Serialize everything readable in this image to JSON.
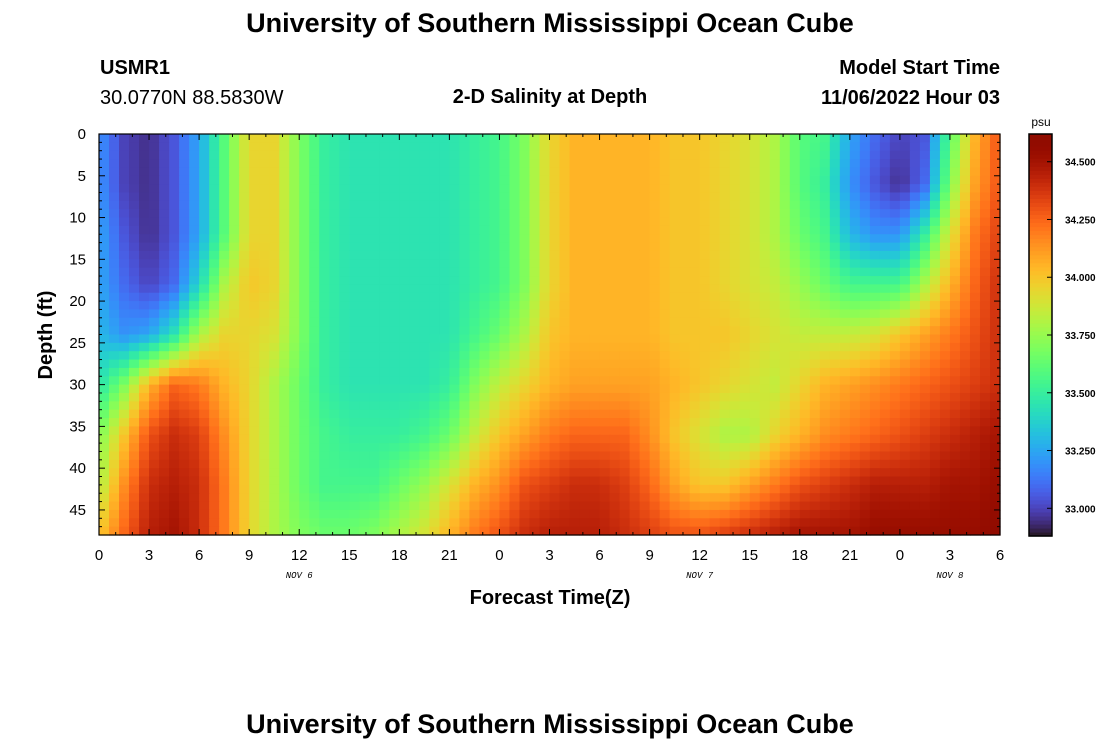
{
  "header": {
    "title": "University of Southern Mississippi Ocean Cube",
    "station_id": "USMR1",
    "coordinates": "30.0770N  88.5830W",
    "plot_title": "2-D Salinity at Depth",
    "model_start_label": "Model Start Time",
    "model_start_value": "11/06/2022 Hour 03"
  },
  "footer": {
    "title": "University of Southern Mississippi Ocean Cube"
  },
  "chart_data": {
    "type": "heatmap",
    "title": "2-D Salinity at Depth",
    "xlabel": "Forecast Time(Z)",
    "ylabel": "Depth (ft)",
    "x_tick_labels": [
      "0",
      "3",
      "6",
      "9",
      "12",
      "15",
      "18",
      "21",
      "0",
      "3",
      "6",
      "9",
      "12",
      "15",
      "18",
      "21",
      "0",
      "3",
      "6"
    ],
    "x_range_hours": [
      0,
      54
    ],
    "date_labels": [
      {
        "text": "NOV 6",
        "hour": 12
      },
      {
        "text": "NOV 7",
        "hour": 36
      },
      {
        "text": "NOV 8",
        "hour": 51
      }
    ],
    "y_tick_labels": [
      "0",
      "5",
      "10",
      "15",
      "20",
      "25",
      "30",
      "35",
      "40",
      "45"
    ],
    "y_range_ft": [
      0,
      48
    ],
    "y_inverted": true,
    "colorbar": {
      "unit": "psu",
      "range": [
        32.88,
        34.62
      ],
      "tick_labels": [
        "34.500",
        "34.250",
        "34.000",
        "33.750",
        "33.500",
        "33.250",
        "33.000"
      ],
      "tick_values": [
        34.5,
        34.25,
        34.0,
        33.75,
        33.5,
        33.25,
        33.0
      ],
      "colormap": "turbo"
    },
    "grid_hours": [
      0,
      1.5,
      3,
      4.5,
      6,
      7.5,
      9,
      10.5,
      12,
      13.5,
      15,
      16.5,
      18,
      19.5,
      21,
      22.5,
      24,
      25.5,
      27,
      28.5,
      30,
      31.5,
      33,
      34.5,
      36,
      37.5,
      39,
      40.5,
      42,
      43.5,
      45,
      46.5,
      48,
      49.5,
      51,
      52.5,
      54
    ],
    "grid_depths_ft": [
      0,
      6,
      12,
      18,
      24,
      30,
      36,
      42,
      48
    ],
    "salinity_psu": [
      [
        33.2,
        33.0,
        32.95,
        33.05,
        33.25,
        33.6,
        33.95,
        33.95,
        33.7,
        33.5,
        33.45,
        33.45,
        33.45,
        33.45,
        33.45,
        33.5,
        33.55,
        33.7,
        33.95,
        34.05,
        34.05,
        34.05,
        34.05,
        34.0,
        34.0,
        33.95,
        33.9,
        33.8,
        33.6,
        33.55,
        33.25,
        33.1,
        33.0,
        33.05,
        33.6,
        34.05,
        34.3
      ],
      [
        33.2,
        33.0,
        32.95,
        33.05,
        33.25,
        33.6,
        33.95,
        33.95,
        33.7,
        33.5,
        33.45,
        33.45,
        33.45,
        33.45,
        33.45,
        33.5,
        33.55,
        33.7,
        33.95,
        34.05,
        34.05,
        34.05,
        34.05,
        34.0,
        34.0,
        33.95,
        33.9,
        33.8,
        33.6,
        33.5,
        33.2,
        33.05,
        32.95,
        33.1,
        33.7,
        34.1,
        34.3
      ],
      [
        33.25,
        33.05,
        32.95,
        33.05,
        33.25,
        33.6,
        33.95,
        33.95,
        33.7,
        33.5,
        33.45,
        33.45,
        33.45,
        33.45,
        33.45,
        33.5,
        33.55,
        33.7,
        33.95,
        34.05,
        34.05,
        34.05,
        34.05,
        34.0,
        34.0,
        33.95,
        33.9,
        33.8,
        33.65,
        33.55,
        33.3,
        33.2,
        33.2,
        33.5,
        33.9,
        34.2,
        34.35
      ],
      [
        33.25,
        33.1,
        33.0,
        33.1,
        33.4,
        33.8,
        34.0,
        33.95,
        33.7,
        33.5,
        33.45,
        33.45,
        33.45,
        33.45,
        33.45,
        33.5,
        33.55,
        33.7,
        33.95,
        34.05,
        34.05,
        34.05,
        34.05,
        34.0,
        34.0,
        33.95,
        33.9,
        33.85,
        33.75,
        33.65,
        33.55,
        33.55,
        33.55,
        33.8,
        34.05,
        34.25,
        34.4
      ],
      [
        33.3,
        33.2,
        33.25,
        33.45,
        33.8,
        33.95,
        33.95,
        33.9,
        33.7,
        33.5,
        33.45,
        33.45,
        33.45,
        33.45,
        33.45,
        33.55,
        33.65,
        33.8,
        34.0,
        34.05,
        34.05,
        34.05,
        34.05,
        34.0,
        34.0,
        34.0,
        33.95,
        33.9,
        33.85,
        33.85,
        33.85,
        33.9,
        34.0,
        34.1,
        34.2,
        34.3,
        34.4
      ],
      [
        33.45,
        33.7,
        34.05,
        34.25,
        34.2,
        34.05,
        33.95,
        33.8,
        33.65,
        33.5,
        33.45,
        33.45,
        33.45,
        33.45,
        33.5,
        33.7,
        33.85,
        33.95,
        34.05,
        34.1,
        34.1,
        34.1,
        34.1,
        34.05,
        34.0,
        33.95,
        33.9,
        33.85,
        33.95,
        34.05,
        34.1,
        34.15,
        34.2,
        34.25,
        34.3,
        34.35,
        34.4
      ],
      [
        33.7,
        34.0,
        34.3,
        34.4,
        34.35,
        34.15,
        33.95,
        33.8,
        33.65,
        33.55,
        33.5,
        33.5,
        33.5,
        33.55,
        33.65,
        33.85,
        34.0,
        34.1,
        34.2,
        34.25,
        34.25,
        34.25,
        34.15,
        34.0,
        33.9,
        33.8,
        33.8,
        33.95,
        34.05,
        34.15,
        34.2,
        34.25,
        34.3,
        34.35,
        34.4,
        34.45,
        34.5
      ],
      [
        33.8,
        34.15,
        34.4,
        34.45,
        34.4,
        34.2,
        33.95,
        33.8,
        33.65,
        33.55,
        33.55,
        33.55,
        33.65,
        33.75,
        33.9,
        34.05,
        34.15,
        34.3,
        34.35,
        34.4,
        34.4,
        34.35,
        34.25,
        34.1,
        34.0,
        34.0,
        34.1,
        34.2,
        34.3,
        34.35,
        34.4,
        34.45,
        34.45,
        34.45,
        34.5,
        34.5,
        34.55
      ],
      [
        34.0,
        34.25,
        34.45,
        34.5,
        34.4,
        34.2,
        33.95,
        33.8,
        33.7,
        33.65,
        33.65,
        33.7,
        33.8,
        33.9,
        34.05,
        34.2,
        34.3,
        34.4,
        34.45,
        34.45,
        34.45,
        34.4,
        34.35,
        34.3,
        34.3,
        34.35,
        34.4,
        34.45,
        34.5,
        34.5,
        34.5,
        34.55,
        34.55,
        34.55,
        34.55,
        34.55,
        34.6
      ]
    ]
  }
}
